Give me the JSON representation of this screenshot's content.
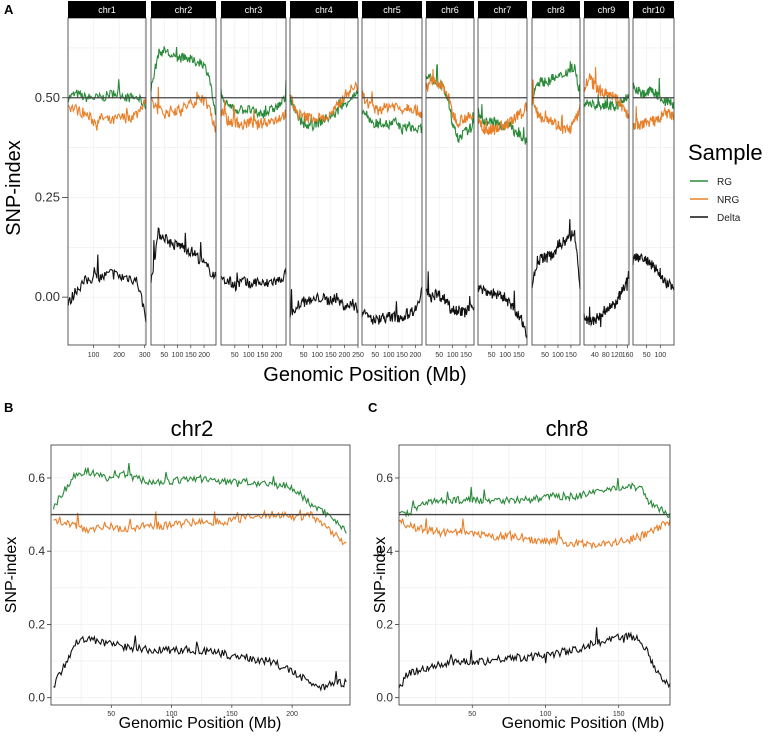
{
  "colors": {
    "RG": "#2a8a3a",
    "NRG": "#e8802a",
    "Delta": "#111111",
    "strip": "#000000",
    "grid": "#ececec"
  },
  "chart_data": [
    {
      "type": "line",
      "panel_label": "A",
      "title": "",
      "xlabel": "Genomic Position (Mb)",
      "ylabel": "SNP-index",
      "ylim": [
        -0.12,
        0.7
      ],
      "yticks": [
        0.0,
        0.25,
        0.5
      ],
      "ytick_labels": [
        "0.00",
        "0.25",
        "0.50"
      ],
      "hline": 0.5,
      "legend": {
        "title": "Sample",
        "items": [
          "RG",
          "NRG",
          "Delta"
        ],
        "position": "right"
      },
      "facets": [
        {
          "name": "chr1",
          "xmax": 305,
          "xticks": [
            100,
            200,
            300
          ],
          "rg": [
            0.5,
            0.51,
            0.5,
            0.5,
            0.5,
            0.51,
            0.51,
            0.5,
            0.5,
            0.48
          ],
          "nrg": [
            0.48,
            0.47,
            0.46,
            0.44,
            0.45,
            0.44,
            0.45,
            0.45,
            0.46,
            0.5
          ],
          "delta": [
            -0.02,
            0.02,
            0.04,
            0.05,
            0.05,
            0.06,
            0.05,
            0.05,
            0.04,
            -0.05
          ]
        },
        {
          "name": "chr2",
          "xmax": 245,
          "xticks": [
            50,
            100,
            150,
            200
          ],
          "rg": [
            0.52,
            0.61,
            0.62,
            0.6,
            0.6,
            0.6,
            0.59,
            0.59,
            0.56,
            0.45
          ],
          "nrg": [
            0.49,
            0.47,
            0.46,
            0.47,
            0.47,
            0.48,
            0.49,
            0.5,
            0.48,
            0.42
          ],
          "delta": [
            0.04,
            0.16,
            0.15,
            0.13,
            0.13,
            0.12,
            0.11,
            0.09,
            0.07,
            0.05
          ]
        },
        {
          "name": "chr3",
          "xmax": 235,
          "xticks": [
            50,
            100,
            150,
            200
          ],
          "rg": [
            0.51,
            0.48,
            0.47,
            0.47,
            0.47,
            0.46,
            0.46,
            0.47,
            0.48,
            0.5
          ],
          "nrg": [
            0.47,
            0.44,
            0.44,
            0.43,
            0.44,
            0.43,
            0.44,
            0.44,
            0.45,
            0.46
          ],
          "delta": [
            0.04,
            0.04,
            0.03,
            0.04,
            0.03,
            0.04,
            0.03,
            0.04,
            0.04,
            0.06
          ]
        },
        {
          "name": "chr4",
          "xmax": 250,
          "xticks": [
            50,
            100,
            150,
            200,
            250
          ],
          "rg": [
            0.5,
            0.45,
            0.43,
            0.43,
            0.44,
            0.45,
            0.46,
            0.48,
            0.5,
            0.51
          ],
          "nrg": [
            0.5,
            0.46,
            0.45,
            0.45,
            0.45,
            0.45,
            0.47,
            0.5,
            0.52,
            0.53
          ],
          "delta": [
            -0.04,
            -0.02,
            -0.01,
            -0.01,
            0.0,
            -0.01,
            0.0,
            -0.02,
            -0.02,
            -0.03
          ]
        },
        {
          "name": "chr5",
          "xmax": 225,
          "xticks": [
            50,
            100,
            150,
            200
          ],
          "rg": [
            0.47,
            0.45,
            0.43,
            0.44,
            0.43,
            0.44,
            0.42,
            0.43,
            0.42,
            0.42
          ],
          "nrg": [
            0.51,
            0.48,
            0.47,
            0.47,
            0.48,
            0.48,
            0.47,
            0.48,
            0.47,
            0.46
          ],
          "delta": [
            -0.04,
            -0.05,
            -0.06,
            -0.05,
            -0.05,
            -0.05,
            -0.05,
            -0.04,
            -0.03,
            0.02
          ]
        },
        {
          "name": "chr6",
          "xmax": 180,
          "xticks": [
            50,
            100,
            150
          ],
          "rg": [
            0.55,
            0.55,
            0.54,
            0.53,
            0.5,
            0.43,
            0.4,
            0.41,
            0.42,
            0.43
          ],
          "nrg": [
            0.53,
            0.55,
            0.53,
            0.53,
            0.51,
            0.46,
            0.44,
            0.45,
            0.45,
            0.45
          ],
          "delta": [
            0.02,
            0.0,
            0.01,
            0.0,
            -0.01,
            -0.03,
            -0.03,
            -0.04,
            -0.03,
            -0.02
          ]
        },
        {
          "name": "chr7",
          "xmax": 180,
          "xticks": [
            50,
            100,
            150
          ],
          "rg": [
            0.47,
            0.44,
            0.44,
            0.44,
            0.43,
            0.43,
            0.43,
            0.41,
            0.4,
            0.39
          ],
          "nrg": [
            0.45,
            0.42,
            0.42,
            0.42,
            0.43,
            0.43,
            0.44,
            0.45,
            0.46,
            0.48
          ],
          "delta": [
            0.02,
            0.02,
            0.01,
            0.01,
            0.0,
            0.0,
            -0.02,
            -0.04,
            -0.06,
            -0.09
          ]
        },
        {
          "name": "chr8",
          "xmax": 185,
          "xticks": [
            50,
            100,
            150
          ],
          "rg": [
            0.5,
            0.54,
            0.54,
            0.54,
            0.55,
            0.55,
            0.56,
            0.57,
            0.58,
            0.5
          ],
          "nrg": [
            0.49,
            0.46,
            0.45,
            0.45,
            0.44,
            0.43,
            0.42,
            0.42,
            0.44,
            0.47
          ],
          "delta": [
            0.03,
            0.09,
            0.1,
            0.1,
            0.11,
            0.13,
            0.14,
            0.15,
            0.16,
            0.03
          ]
        },
        {
          "name": "chr9",
          "xmax": 165,
          "xticks": [
            40,
            80,
            120,
            160
          ],
          "rg": [
            0.48,
            0.49,
            0.48,
            0.48,
            0.48,
            0.48,
            0.48,
            0.48,
            0.5,
            0.5
          ],
          "nrg": [
            0.52,
            0.55,
            0.53,
            0.52,
            0.51,
            0.51,
            0.5,
            0.49,
            0.47,
            0.45
          ],
          "delta": [
            -0.05,
            -0.06,
            -0.06,
            -0.05,
            -0.04,
            -0.03,
            -0.02,
            0.0,
            0.02,
            0.06
          ]
        },
        {
          "name": "chr10",
          "xmax": 150,
          "xticks": [
            50,
            100
          ],
          "rg": [
            0.53,
            0.52,
            0.51,
            0.51,
            0.52,
            0.51,
            0.5,
            0.49,
            0.49,
            0.48
          ],
          "nrg": [
            0.43,
            0.43,
            0.43,
            0.44,
            0.44,
            0.44,
            0.45,
            0.46,
            0.46,
            0.45
          ],
          "delta": [
            0.09,
            0.1,
            0.1,
            0.09,
            0.08,
            0.07,
            0.06,
            0.04,
            0.03,
            0.03
          ]
        }
      ]
    },
    {
      "type": "line",
      "panel_label": "B",
      "title": "chr2",
      "xlabel": "Genomic Position (Mb)",
      "ylabel": "SNP-index",
      "xlim": [
        0,
        248
      ],
      "xticks": [
        50,
        100,
        150,
        200
      ],
      "ylim": [
        -0.02,
        0.69
      ],
      "yticks": [
        0.0,
        0.2,
        0.4,
        0.6
      ],
      "ytick_labels": [
        "0.0",
        "0.2",
        "0.4",
        "0.6"
      ],
      "hline": 0.5,
      "series": [
        {
          "name": "RG",
          "x": [
            2,
            10,
            20,
            30,
            45,
            60,
            80,
            100,
            120,
            140,
            160,
            180,
            195,
            205,
            215,
            225,
            235,
            245
          ],
          "values": [
            0.52,
            0.56,
            0.61,
            0.62,
            0.6,
            0.61,
            0.59,
            0.59,
            0.6,
            0.59,
            0.59,
            0.58,
            0.58,
            0.56,
            0.53,
            0.51,
            0.49,
            0.45
          ]
        },
        {
          "name": "NRG",
          "x": [
            2,
            10,
            20,
            30,
            45,
            60,
            80,
            100,
            120,
            140,
            160,
            180,
            195,
            205,
            215,
            225,
            235,
            245
          ],
          "values": [
            0.49,
            0.48,
            0.47,
            0.46,
            0.47,
            0.46,
            0.47,
            0.47,
            0.48,
            0.48,
            0.49,
            0.5,
            0.5,
            0.49,
            0.5,
            0.47,
            0.45,
            0.42
          ]
        },
        {
          "name": "Delta",
          "x": [
            2,
            10,
            20,
            30,
            45,
            60,
            80,
            100,
            120,
            140,
            160,
            180,
            195,
            205,
            215,
            225,
            235,
            245
          ],
          "values": [
            0.03,
            0.08,
            0.15,
            0.16,
            0.15,
            0.14,
            0.13,
            0.13,
            0.13,
            0.12,
            0.11,
            0.1,
            0.08,
            0.06,
            0.04,
            0.03,
            0.04,
            0.04
          ]
        }
      ]
    },
    {
      "type": "line",
      "panel_label": "C",
      "title": "chr8",
      "xlabel": "Genomic Position (Mb)",
      "ylabel": "SNP-index",
      "xlim": [
        0,
        185
      ],
      "xticks": [
        50,
        100,
        150
      ],
      "ylim": [
        -0.02,
        0.69
      ],
      "yticks": [
        0.0,
        0.2,
        0.4,
        0.6
      ],
      "ytick_labels": [
        "0.0",
        "0.2",
        "0.4",
        "0.6"
      ],
      "hline": 0.5,
      "series": [
        {
          "name": "RG",
          "x": [
            0,
            5,
            15,
            30,
            45,
            60,
            75,
            90,
            105,
            120,
            135,
            145,
            155,
            165,
            175,
            185
          ],
          "values": [
            0.5,
            0.5,
            0.53,
            0.54,
            0.54,
            0.54,
            0.54,
            0.54,
            0.55,
            0.55,
            0.56,
            0.57,
            0.58,
            0.57,
            0.52,
            0.5
          ]
        },
        {
          "name": "NRG",
          "x": [
            0,
            5,
            15,
            30,
            45,
            60,
            75,
            90,
            105,
            120,
            135,
            145,
            155,
            165,
            175,
            185
          ],
          "values": [
            0.49,
            0.47,
            0.46,
            0.45,
            0.45,
            0.44,
            0.44,
            0.43,
            0.43,
            0.42,
            0.42,
            0.42,
            0.43,
            0.44,
            0.46,
            0.48
          ]
        },
        {
          "name": "Delta",
          "x": [
            0,
            5,
            15,
            30,
            45,
            60,
            75,
            90,
            105,
            120,
            135,
            145,
            155,
            165,
            175,
            185
          ],
          "values": [
            0.02,
            0.06,
            0.08,
            0.09,
            0.1,
            0.1,
            0.11,
            0.11,
            0.12,
            0.13,
            0.15,
            0.16,
            0.17,
            0.16,
            0.08,
            0.03
          ]
        }
      ]
    }
  ]
}
